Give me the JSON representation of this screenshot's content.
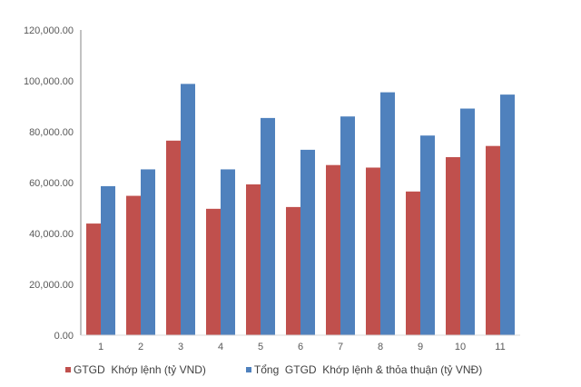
{
  "chart_data": {
    "type": "bar",
    "title": "",
    "xlabel": "",
    "ylabel": "",
    "categories": [
      "1",
      "2",
      "3",
      "4",
      "5",
      "6",
      "7",
      "8",
      "9",
      "10",
      "11"
    ],
    "ylim": [
      0,
      120000
    ],
    "yticks": [
      "0.00",
      "20,000.00",
      "40,000.00",
      "60,000.00",
      "80,000.00",
      "100,000.00",
      "120,000.00"
    ],
    "grid": false,
    "legend_position": "bottom",
    "series": [
      {
        "name": "GTGD  Khớp lệnh (tỷ VND)",
        "color": "#c0504d",
        "values": [
          43900,
          54800,
          76500,
          49700,
          59300,
          50400,
          66900,
          65900,
          56500,
          70000,
          74400
        ]
      },
      {
        "name": "Tổng  GTGD  Khớp lệnh & thỏa thuận (tỷ VNĐ)",
        "color": "#4f81bd",
        "values": [
          58600,
          65200,
          98800,
          65200,
          85400,
          72900,
          86000,
          95500,
          78500,
          89100,
          94600
        ]
      }
    ]
  }
}
